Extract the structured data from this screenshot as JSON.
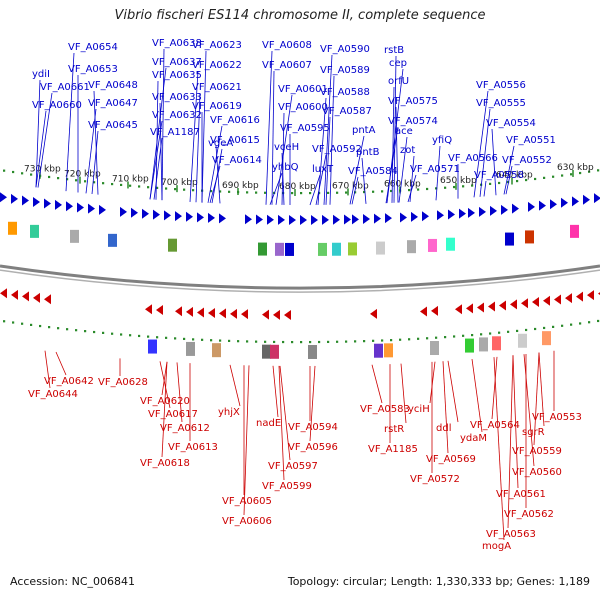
{
  "title": "Vibrio fischeri ES114 chromosome II, complete sequence",
  "footer": {
    "accession": "Accession: NC_006841",
    "summary": "Topology: circular; Length: 1,330,333 bp; Genes: 1,189"
  },
  "colors": {
    "forward": "#0000cc",
    "reverse": "#cc0000",
    "backbone": "#808080",
    "ticks": "#2a8a2a"
  },
  "ticks": [
    "730 kbp",
    "720 kbp",
    "710 kbp",
    "700 kbp",
    "690 kbp",
    "680 kbp",
    "670 kbp",
    "660 kbp",
    "650 kbp",
    "640 kbp",
    "630 kbp"
  ],
  "forward_labels": [
    {
      "t": "VF_A0654"
    },
    {
      "t": "ydiI"
    },
    {
      "t": "VF_A0653"
    },
    {
      "t": "VF_A0661"
    },
    {
      "t": "VF_A0660"
    },
    {
      "t": "VF_A0648"
    },
    {
      "t": "VF_A0647"
    },
    {
      "t": "VF_A0645"
    },
    {
      "t": "VF_A0638"
    },
    {
      "t": "VF_A0637"
    },
    {
      "t": "VF_A0635"
    },
    {
      "t": "VF_A0633"
    },
    {
      "t": "VF_A0632"
    },
    {
      "t": "VF_A1187"
    },
    {
      "t": "VF_A0623"
    },
    {
      "t": "VF_A0622"
    },
    {
      "t": "VF_A0621"
    },
    {
      "t": "VF_A0619"
    },
    {
      "t": "VF_A0616"
    },
    {
      "t": "vgeA"
    },
    {
      "t": "VF_A0615"
    },
    {
      "t": "VF_A0614"
    },
    {
      "t": "VF_A0608"
    },
    {
      "t": "VF_A0607"
    },
    {
      "t": "VF_A0601"
    },
    {
      "t": "VF_A0600"
    },
    {
      "t": "vceH"
    },
    {
      "t": "yhbQ"
    },
    {
      "t": "VF_A0590"
    },
    {
      "t": "VF_A0589"
    },
    {
      "t": "VF_A0588"
    },
    {
      "t": "VF_A0587"
    },
    {
      "t": "VF_A0595"
    },
    {
      "t": "pntA"
    },
    {
      "t": "VF_A0592"
    },
    {
      "t": "pntB"
    },
    {
      "t": "luxT"
    },
    {
      "t": "VF_A0584"
    },
    {
      "t": "rstB"
    },
    {
      "t": "cep"
    },
    {
      "t": "orfU"
    },
    {
      "t": "VF_A0575"
    },
    {
      "t": "VF_A0574"
    },
    {
      "t": "ace"
    },
    {
      "t": "zot"
    },
    {
      "t": "VF_A0571"
    },
    {
      "t": "yfiQ"
    },
    {
      "t": "VF_A0566"
    },
    {
      "t": "VF_A0556"
    },
    {
      "t": "VF_A0555"
    },
    {
      "t": "VF_A0554"
    },
    {
      "t": "VF_A0551"
    },
    {
      "t": "VF_A0552"
    },
    {
      "t": "VF_A0558"
    }
  ],
  "reverse_labels": [
    {
      "t": "VF_A0642"
    },
    {
      "t": "VF_A0644"
    },
    {
      "t": "VF_A0628"
    },
    {
      "t": "VF_A0620"
    },
    {
      "t": "VF_A0617"
    },
    {
      "t": "VF_A0612"
    },
    {
      "t": "VF_A0613"
    },
    {
      "t": "VF_A0618"
    },
    {
      "t": "yhjX"
    },
    {
      "t": "nadE"
    },
    {
      "t": "VF_A0594"
    },
    {
      "t": "VF_A0596"
    },
    {
      "t": "VF_A0597"
    },
    {
      "t": "VF_A0599"
    },
    {
      "t": "VF_A0605"
    },
    {
      "t": "VF_A0606"
    },
    {
      "t": "VF_A0583"
    },
    {
      "t": "rstR"
    },
    {
      "t": "VF_A1185"
    },
    {
      "t": "yciH"
    },
    {
      "t": "ddl"
    },
    {
      "t": "VF_A0569"
    },
    {
      "t": "VF_A0572"
    },
    {
      "t": "VF_A0564"
    },
    {
      "t": "ydaM"
    },
    {
      "t": "sgrR"
    },
    {
      "t": "VF_A0553"
    },
    {
      "t": "VF_A0559"
    },
    {
      "t": "VF_A0560"
    },
    {
      "t": "VF_A0561"
    },
    {
      "t": "VF_A0562"
    },
    {
      "t": "VF_A0563"
    },
    {
      "t": "mogA"
    }
  ]
}
